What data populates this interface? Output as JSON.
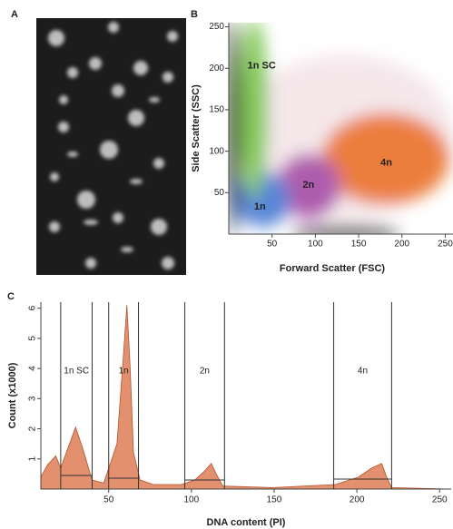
{
  "panel_labels": [
    "A",
    "B",
    "C"
  ],
  "chart_data": [
    {
      "type": "scatter",
      "xlabel": "Forward Scatter (FSC)",
      "ylabel": "Side Scatter (SSC)",
      "xlim": [
        0,
        260
      ],
      "ylim": [
        0,
        255
      ],
      "xticks": [
        50,
        100,
        150,
        200,
        250
      ],
      "yticks": [
        50,
        100,
        150,
        200,
        250
      ],
      "annotations": [
        {
          "text": "1n SC",
          "x": 38,
          "y": 203
        },
        {
          "text": "1n",
          "x": 36,
          "y": 33
        },
        {
          "text": "2n",
          "x": 92,
          "y": 59
        },
        {
          "text": "4n",
          "x": 182,
          "y": 86
        }
      ]
    },
    {
      "type": "area",
      "xlabel": "DNA content (PI)",
      "ylabel": "Count (x1000)",
      "color": "#e3906f",
      "x": [
        9,
        13,
        18,
        21,
        25,
        30,
        34,
        40,
        47,
        55,
        59,
        61,
        63,
        65,
        69,
        77,
        94,
        102,
        108,
        112,
        115,
        119,
        149,
        187,
        201,
        209,
        215,
        218,
        221,
        257
      ],
      "values": [
        0.4,
        0.8,
        1.1,
        0.7,
        1.3,
        2.05,
        1.4,
        0.3,
        0.2,
        1.5,
        4.5,
        6.1,
        4,
        1.2,
        0.3,
        0.15,
        0.15,
        0.3,
        0.6,
        0.85,
        0.5,
        0.1,
        0.05,
        0.15,
        0.4,
        0.7,
        0.85,
        0.4,
        0.05,
        0
      ],
      "xlim": [
        9,
        257
      ],
      "ylim": [
        0,
        6.2
      ],
      "xticks": [
        50,
        100,
        150,
        200,
        250
      ],
      "yticks": [
        1,
        2,
        3,
        4,
        5,
        6
      ],
      "gates": [
        {
          "label": "1n SC",
          "xrange": [
            21,
            40
          ],
          "level": 0.45
        },
        {
          "label": "1n",
          "xrange": [
            50,
            68
          ],
          "level": 0.36
        },
        {
          "label": "2n",
          "xrange": [
            96,
            120
          ],
          "level": 0.3
        },
        {
          "label": "4n",
          "xrange": [
            186,
            221
          ],
          "level": 0.33
        }
      ]
    }
  ]
}
